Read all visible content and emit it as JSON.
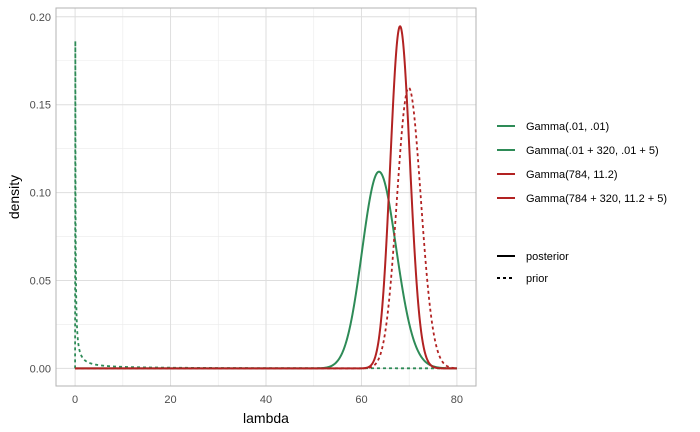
{
  "chart_data": {
    "type": "line",
    "title": "",
    "xlabel": "lambda",
    "ylabel": "density",
    "xlim": [
      -4,
      84
    ],
    "ylim": [
      -0.01,
      0.205
    ],
    "xticks": [
      0,
      20,
      40,
      60,
      80
    ],
    "xtick_labels": [
      "0",
      "20",
      "40",
      "60",
      "80"
    ],
    "yticks": [
      0.0,
      0.05,
      0.1,
      0.15,
      0.2
    ],
    "ytick_labels": [
      "0.00",
      "0.05",
      "0.10",
      "0.15",
      "0.20"
    ],
    "grid": true,
    "legend_position": "right",
    "series": [
      {
        "name": "Gamma(.01, .01)",
        "distribution": {
          "shape": 0.01,
          "rate": 0.01
        },
        "role": "prior",
        "color": "#2e8b57",
        "linetype": "dashed"
      },
      {
        "name": "Gamma(.01 + 320, .01 + 5)",
        "distribution": {
          "shape": 320.01,
          "rate": 5.01
        },
        "role": "posterior",
        "color": "#2e8b57",
        "linetype": "solid"
      },
      {
        "name": "Gamma(784, 11.2)",
        "distribution": {
          "shape": 784,
          "rate": 11.2
        },
        "role": "prior",
        "color": "#b22222",
        "linetype": "dashed"
      },
      {
        "name": "Gamma(784 + 320, 11.2 + 5)",
        "distribution": {
          "shape": 1104,
          "rate": 16.2
        },
        "role": "posterior",
        "color": "#b22222",
        "linetype": "solid"
      }
    ],
    "linetype_legend": [
      {
        "label": "posterior",
        "linetype": "solid"
      },
      {
        "label": "prior",
        "linetype": "dashed"
      }
    ],
    "x_range": [
      0,
      80
    ]
  }
}
